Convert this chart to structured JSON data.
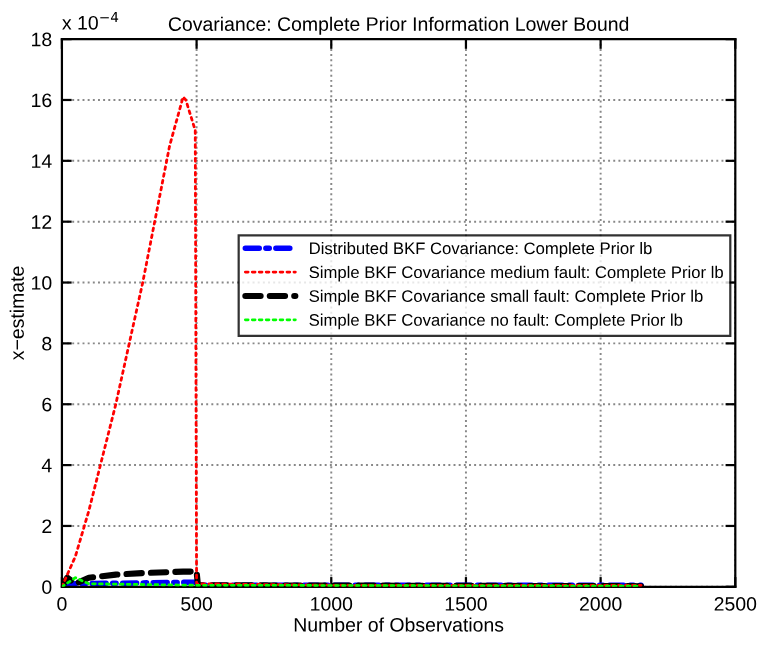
{
  "chart_data": {
    "type": "line",
    "title": "Covariance: Complete Prior Information Lower Bound",
    "xlabel": "Number of Observations",
    "ylabel": "x−estimate",
    "annotations": [
      "x 10$^{−4}$"
    ],
    "xlim": [
      0,
      2500
    ],
    "xticks": [
      0,
      500,
      1000,
      1500,
      2000,
      2500
    ],
    "ylim": [
      0,
      18
    ],
    "yticks": [
      0,
      2,
      4,
      6,
      8,
      10,
      12,
      14,
      16,
      18
    ],
    "grid": true,
    "legend": "right",
    "series": [
      {
        "name": "Distributed BKF Covariance: Complete Prior lb",
        "color": "#0000ff",
        "line_style": "dashdot",
        "x": [
          0,
          50,
          500,
          505,
          2150
        ],
        "values": [
          0,
          0.1,
          0.15,
          0.05,
          0.05
        ]
      },
      {
        "name": "Simple BKF Covariance medium fault: Complete Prior lb",
        "color": "#ff0000",
        "line_style": "dotted",
        "x": [
          0,
          50,
          100,
          200,
          300,
          400,
          450,
          460,
          495,
          500,
          1000,
          2150
        ],
        "values": [
          0,
          1,
          2.5,
          6,
          10,
          14.5,
          16.1,
          16,
          15,
          0.1,
          0.05,
          0.05
        ]
      },
      {
        "name": "Simple BKF Covariance small fault: Complete Prior lb",
        "color": "#000000",
        "line_style": "dashed",
        "x": [
          0,
          20,
          50,
          100,
          200,
          300,
          450,
          500,
          505,
          2150
        ],
        "values": [
          0,
          0.3,
          0.1,
          0.3,
          0.4,
          0.45,
          0.5,
          0.5,
          0.05,
          0.02
        ]
      },
      {
        "name": "Simple BKF Covariance no fault: Complete Prior lb",
        "color": "#00ff00",
        "line_style": "dotted",
        "x": [
          0,
          50,
          100,
          500,
          2150
        ],
        "values": [
          0,
          0.3,
          0.1,
          0.05,
          0.02
        ]
      }
    ]
  }
}
